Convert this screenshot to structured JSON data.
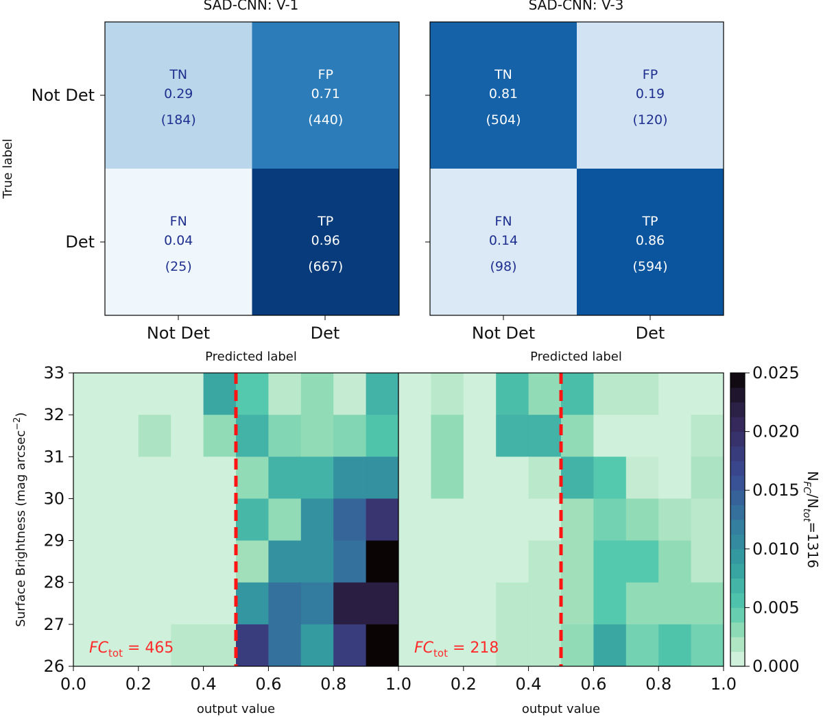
{
  "chart_data": [
    {
      "type": "heatmap",
      "subtype": "confusion_matrix",
      "title": "SAD-CNN: V-1",
      "xlabel": "Predicted label",
      "ylabel": "True label",
      "x_ticks": [
        "Not Det",
        "Det"
      ],
      "y_ticks": [
        "Not Det",
        "Det"
      ],
      "cells": [
        [
          {
            "tag": "TN",
            "value": "0.29",
            "count": "(184)",
            "norm": 0.29
          },
          {
            "tag": "FP",
            "value": "0.71",
            "count": "(440)",
            "norm": 0.71
          }
        ],
        [
          {
            "tag": "FN",
            "value": "0.04",
            "count": "(25)",
            "norm": 0.04
          },
          {
            "tag": "TP",
            "value": "0.96",
            "count": "(667)",
            "norm": 0.96
          }
        ]
      ]
    },
    {
      "type": "heatmap",
      "subtype": "confusion_matrix",
      "title": "SAD-CNN: V-3",
      "xlabel": "Predicted label",
      "ylabel": "",
      "x_ticks": [
        "Not Det",
        "Det"
      ],
      "y_ticks": [],
      "cells": [
        [
          {
            "tag": "TN",
            "value": "0.81",
            "count": "(504)",
            "norm": 0.81
          },
          {
            "tag": "FP",
            "value": "0.19",
            "count": "(120)",
            "norm": 0.19
          }
        ],
        [
          {
            "tag": "FN",
            "value": "0.14",
            "count": "(98)",
            "norm": 0.14
          },
          {
            "tag": "TP",
            "value": "0.86",
            "count": "(594)",
            "norm": 0.86
          }
        ]
      ]
    },
    {
      "type": "heatmap",
      "subtype": "2d_histogram",
      "xlabel": "output value",
      "ylabel": "Surface Brightness (mag arcsec",
      "ylabel_sup": "−2",
      "ylabel_end": ")",
      "x_ticks": [
        "0.0",
        "0.2",
        "0.4",
        "0.6",
        "0.8",
        "1.0"
      ],
      "y_ticks": [
        "26",
        "27",
        "28",
        "29",
        "30",
        "31",
        "32",
        "33"
      ],
      "xlim": [
        0,
        1
      ],
      "ylim": [
        26,
        33
      ],
      "threshold": 0.5,
      "annotation_symbol": "FC",
      "annotation_sub": "tot",
      "annotation_value": " = 465",
      "y_top_to_bottom": [
        "32-33",
        "31-32",
        "30-31",
        "29-30",
        "28-29",
        "27-28",
        "26-27"
      ],
      "grid": [
        [
          0.0006,
          0.0006,
          0.0006,
          0.0006,
          0.008,
          0.005,
          0.0015,
          0.003,
          0.001,
          0.007
        ],
        [
          0.0006,
          0.0006,
          0.002,
          0.0006,
          0.003,
          0.007,
          0.0035,
          0.003,
          0.0035,
          0.0055
        ],
        [
          0.0006,
          0.0006,
          0.0006,
          0.0006,
          0.0006,
          0.003,
          0.007,
          0.007,
          0.01,
          0.01
        ],
        [
          0.0006,
          0.0006,
          0.0006,
          0.0006,
          0.0006,
          0.0065,
          0.003,
          0.01,
          0.014,
          0.019
        ],
        [
          0.0006,
          0.0006,
          0.0006,
          0.0006,
          0.0006,
          0.0025,
          0.01,
          0.01,
          0.013,
          0.025
        ],
        [
          0.0006,
          0.0006,
          0.0006,
          0.0006,
          0.0006,
          0.0095,
          0.013,
          0.012,
          0.022,
          0.022
        ],
        [
          0.0006,
          0.0006,
          0.0006,
          0.0015,
          0.0015,
          0.018,
          0.013,
          0.009,
          0.018,
          0.025
        ]
      ]
    },
    {
      "type": "heatmap",
      "subtype": "2d_histogram",
      "xlabel": "output value",
      "x_ticks": [
        "0.2",
        "0.4",
        "0.6",
        "0.8",
        "1.0"
      ],
      "xlim": [
        0,
        1
      ],
      "ylim": [
        26,
        33
      ],
      "threshold": 0.5,
      "annotation_symbol": "FC",
      "annotation_sub": "tot",
      "annotation_value": " = 218",
      "y_top_to_bottom": [
        "32-33",
        "31-32",
        "30-31",
        "29-30",
        "28-29",
        "27-28",
        "26-27"
      ],
      "grid": [
        [
          0.0006,
          0.0015,
          0.0006,
          0.006,
          0.003,
          0.006,
          0.0015,
          0.0015,
          0.0006,
          0.0006
        ],
        [
          0.0006,
          0.003,
          0.0006,
          0.007,
          0.007,
          0.003,
          0.0006,
          0.0006,
          0.0006,
          0.0015
        ],
        [
          0.0006,
          0.003,
          0.0006,
          0.0006,
          0.0015,
          0.007,
          0.005,
          0.001,
          0.0006,
          0.002
        ],
        [
          0.0006,
          0.0006,
          0.0006,
          0.0006,
          0.0006,
          0.0025,
          0.004,
          0.003,
          0.002,
          0.0015
        ],
        [
          0.0006,
          0.0006,
          0.0006,
          0.0006,
          0.0015,
          0.0025,
          0.005,
          0.005,
          0.003,
          0.0015
        ],
        [
          0.0006,
          0.0006,
          0.0006,
          0.0015,
          0.0015,
          0.0025,
          0.005,
          0.003,
          0.003,
          0.003
        ],
        [
          0.0006,
          0.0006,
          0.0006,
          0.0015,
          0.0015,
          0.003,
          0.008,
          0.004,
          0.0055,
          0.004
        ]
      ]
    },
    {
      "type": "colorbar",
      "label_main": "N",
      "label_sub1": "FC",
      "label_mid": "/N",
      "label_sub2": "tot",
      "label_value": "=1316",
      "ticks": [
        "0.000",
        "0.005",
        "0.010",
        "0.015",
        "0.020",
        "0.025"
      ],
      "range": [
        0,
        0.025
      ]
    }
  ],
  "colors": {
    "threshold_line": "#ff1414",
    "annotation": "#ff2a2a"
  }
}
